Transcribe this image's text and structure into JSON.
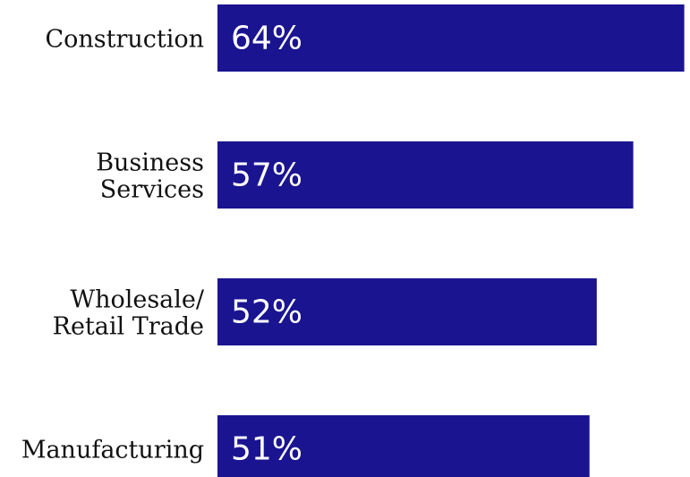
{
  "chart_data": {
    "type": "bar",
    "orientation": "horizontal",
    "categories": [
      [
        "Construction"
      ],
      [
        "Business",
        "Services"
      ],
      [
        "Wholesale/",
        "Retail Trade"
      ],
      [
        "Manufacturing"
      ]
    ],
    "values": [
      64,
      57,
      52,
      51
    ],
    "value_labels": [
      "64%",
      "57%",
      "52%",
      "51%"
    ],
    "bar_color": "#1a1491",
    "title": "",
    "xlabel": "",
    "ylabel": "",
    "legend": "none",
    "grid": false
  }
}
